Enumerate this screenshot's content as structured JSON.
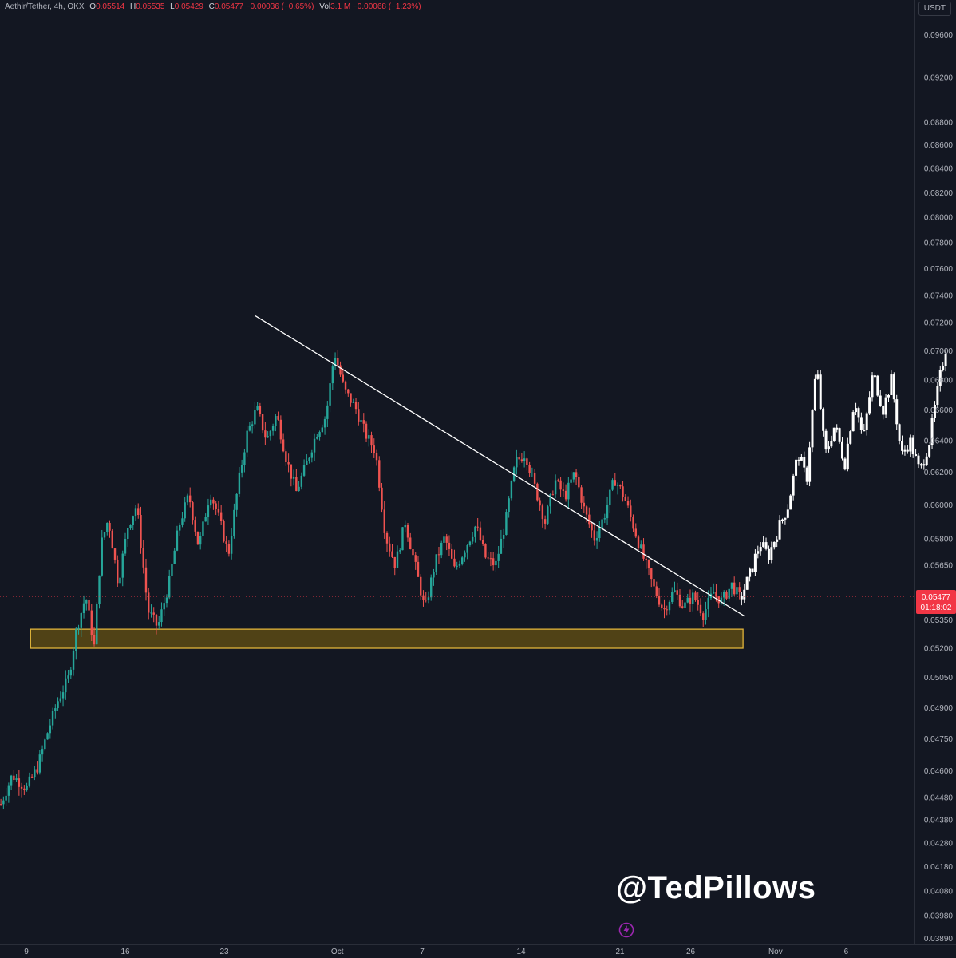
{
  "header": {
    "symbol": "Aethir/Tether, 4h, OKX",
    "o_label": "O",
    "o_value": "0.05514",
    "h_label": "H",
    "h_value": "0.05535",
    "l_label": "L",
    "l_value": "0.05429",
    "c_label": "C",
    "c_value": "0.05477",
    "change": "−0.00036 (−0.65%)",
    "vol_label": "Vol",
    "vol_value": "3.1 M",
    "vol_change": "−0.00068 (−1.23%)"
  },
  "unit_button": "USDT",
  "watermark": "@TedPillows",
  "icons": [
    "lightning-icon"
  ],
  "colors": {
    "background": "#131722",
    "up": "#26a69a",
    "down": "#ef5350",
    "zone_fill": "#5c4a14",
    "zone_border": "#e0b43a",
    "trendline": "#ffffff",
    "projection": "#ffffff",
    "price_label": "#f23645"
  },
  "chart_data": {
    "type": "candlestick",
    "scale": "log",
    "y_ticks": [
      "0.09600",
      "0.09200",
      "0.08800",
      "0.08600",
      "0.08400",
      "0.08200",
      "0.08000",
      "0.07800",
      "0.07600",
      "0.07400",
      "0.07200",
      "0.07000",
      "0.06800",
      "0.06600",
      "0.06400",
      "0.06200",
      "0.06000",
      "0.05800",
      "0.05650",
      "0.05350",
      "0.05200",
      "0.05050",
      "0.04900",
      "0.04750",
      "0.04600",
      "0.04480",
      "0.04380",
      "0.04280",
      "0.04180",
      "0.04080",
      "0.03980",
      "0.03890"
    ],
    "x_ticks": [
      {
        "label": "9",
        "day": 0
      },
      {
        "label": "16",
        "day": 7
      },
      {
        "label": "23",
        "day": 14
      },
      {
        "label": "Oct",
        "day": 22
      },
      {
        "label": "7",
        "day": 28
      },
      {
        "label": "14",
        "day": 35
      },
      {
        "label": "21",
        "day": 42
      },
      {
        "label": "26",
        "day": 47
      },
      {
        "label": "Nov",
        "day": 53
      },
      {
        "label": "6",
        "day": 58
      }
    ],
    "current_price": "0.05477",
    "countdown": "01:18:02",
    "support_zone": {
      "low": 0.052,
      "high": 0.053,
      "from_day": 0.3,
      "to_day": 50.7
    },
    "trendline": {
      "from": {
        "day": 16.2,
        "price": 0.0725
      },
      "to": {
        "day": 50.8,
        "price": 0.0537
      }
    },
    "price_path": [
      [
        -1.8,
        0.0445
      ],
      [
        -1,
        0.0458
      ],
      [
        0,
        0.0452
      ],
      [
        0.8,
        0.0462
      ],
      [
        1.5,
        0.0478
      ],
      [
        2.2,
        0.0493
      ],
      [
        3,
        0.0505
      ],
      [
        3.5,
        0.0528
      ],
      [
        4.2,
        0.0548
      ],
      [
        4.8,
        0.0521
      ],
      [
        5.3,
        0.0577
      ],
      [
        5.8,
        0.0592
      ],
      [
        6.5,
        0.0555
      ],
      [
        7.2,
        0.0588
      ],
      [
        7.8,
        0.06
      ],
      [
        8.6,
        0.054
      ],
      [
        9.3,
        0.0531
      ],
      [
        10.1,
        0.0555
      ],
      [
        10.8,
        0.0588
      ],
      [
        11.5,
        0.0606
      ],
      [
        12.2,
        0.0575
      ],
      [
        13,
        0.0608
      ],
      [
        13.6,
        0.0593
      ],
      [
        14.3,
        0.0571
      ],
      [
        15,
        0.0613
      ],
      [
        15.6,
        0.0644
      ],
      [
        16.3,
        0.0661
      ],
      [
        17,
        0.064
      ],
      [
        17.7,
        0.0657
      ],
      [
        18.4,
        0.0628
      ],
      [
        19.1,
        0.0608
      ],
      [
        19.8,
        0.0625
      ],
      [
        20.5,
        0.0644
      ],
      [
        21.2,
        0.0656
      ],
      [
        21.8,
        0.0699
      ],
      [
        22.5,
        0.0673
      ],
      [
        23.3,
        0.0661
      ],
      [
        24,
        0.0644
      ],
      [
        24.7,
        0.0633
      ],
      [
        25.4,
        0.0582
      ],
      [
        26.1,
        0.0565
      ],
      [
        26.8,
        0.059
      ],
      [
        27.5,
        0.0565
      ],
      [
        28.2,
        0.054
      ],
      [
        28.9,
        0.0566
      ],
      [
        29.6,
        0.0581
      ],
      [
        30.3,
        0.0562
      ],
      [
        31,
        0.0574
      ],
      [
        31.8,
        0.0588
      ],
      [
        32.5,
        0.0569
      ],
      [
        33.2,
        0.0565
      ],
      [
        33.9,
        0.059
      ],
      [
        34.6,
        0.0626
      ],
      [
        35.3,
        0.0632
      ],
      [
        36,
        0.061
      ],
      [
        36.7,
        0.059
      ],
      [
        37.4,
        0.0615
      ],
      [
        38.1,
        0.0605
      ],
      [
        38.8,
        0.062
      ],
      [
        39.5,
        0.0596
      ],
      [
        40.2,
        0.058
      ],
      [
        40.9,
        0.0594
      ],
      [
        41.6,
        0.0616
      ],
      [
        42.3,
        0.0605
      ],
      [
        43,
        0.0586
      ],
      [
        43.7,
        0.0568
      ],
      [
        44.4,
        0.0552
      ],
      [
        45.1,
        0.054
      ],
      [
        45.8,
        0.0551
      ],
      [
        46.5,
        0.0542
      ],
      [
        47.2,
        0.0548
      ],
      [
        47.9,
        0.0538
      ],
      [
        48.6,
        0.055
      ],
      [
        49.2,
        0.0545
      ],
      [
        49.9,
        0.0554
      ],
      [
        50.5,
        0.0547
      ]
    ],
    "projection_path": [
      [
        50.6,
        0.0548
      ],
      [
        51.2,
        0.056
      ],
      [
        51.9,
        0.0578
      ],
      [
        52.5,
        0.057
      ],
      [
        53.2,
        0.0586
      ],
      [
        53.9,
        0.06
      ],
      [
        54.6,
        0.0632
      ],
      [
        55.2,
        0.0615
      ],
      [
        55.9,
        0.069
      ],
      [
        56.5,
        0.063
      ],
      [
        57.2,
        0.065
      ],
      [
        57.9,
        0.0625
      ],
      [
        58.6,
        0.0668
      ],
      [
        59.2,
        0.064
      ],
      [
        59.9,
        0.0685
      ],
      [
        60.6,
        0.066
      ],
      [
        61.2,
        0.068
      ],
      [
        61.9,
        0.063
      ],
      [
        62.5,
        0.064
      ],
      [
        63.2,
        0.062
      ],
      [
        63.9,
        0.064
      ],
      [
        64.6,
        0.068
      ],
      [
        65.2,
        0.071
      ]
    ]
  }
}
